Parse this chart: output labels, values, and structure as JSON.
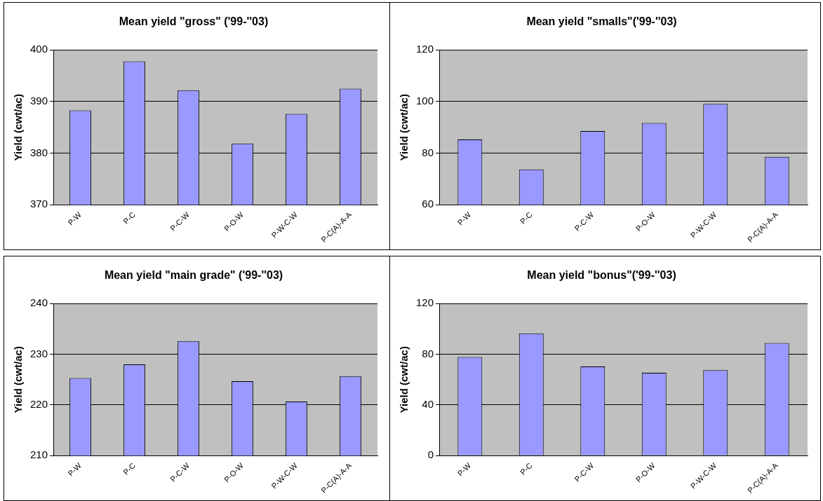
{
  "chart_data": [
    {
      "type": "bar",
      "title": "Mean yield \"gross\" ('99-''03)",
      "ylabel": "Yield (cwt/ac)",
      "categories": [
        "P-W",
        "P-C",
        "P-C-W",
        "P-O-W",
        "P-W-C-W",
        "P-C(A)-A-A"
      ],
      "values": [
        388.3,
        397.8,
        392.2,
        381.9,
        387.6,
        392.5
      ],
      "color": "#9999ff",
      "ylim": [
        370,
        400
      ],
      "yticks": [
        370,
        380,
        390,
        400
      ],
      "grid": "y"
    },
    {
      "type": "bar",
      "title": "Mean yield \"smalls\"('99-''03)",
      "ylabel": "Yield (cwt/ac)",
      "categories": [
        "P-W",
        "P-C",
        "P-C-W",
        "P-O-W",
        "P-W-C-W",
        "P-C(A)-A-A"
      ],
      "values": [
        85.3,
        73.7,
        88.6,
        91.7,
        99.1,
        78.6
      ],
      "color": "#9999ff",
      "ylim": [
        60,
        120
      ],
      "yticks": [
        60,
        80,
        100,
        120
      ],
      "grid": "y"
    },
    {
      "type": "bar",
      "title": "Mean yield \"main grade\" ('99-''03)",
      "ylabel": "Yield (cwt/ac)",
      "categories": [
        "P-W",
        "P-C",
        "P-C-W",
        "P-O-W",
        "P-W-C-W",
        "P-C(A)-A-A"
      ],
      "values": [
        225.3,
        228.0,
        232.6,
        224.7,
        220.7,
        225.7
      ],
      "color": "#9999ff",
      "ylim": [
        210,
        240
      ],
      "yticks": [
        210,
        220,
        230,
        240
      ],
      "grid": "y"
    },
    {
      "type": "bar",
      "title": "Mean yield \"bonus\"('99-''03)",
      "ylabel": "Yield (cwt/ac)",
      "categories": [
        "P-W",
        "P-C",
        "P-C-W",
        "P-O-W",
        "P-W-C-W",
        "P-C(A)-A-A"
      ],
      "values": [
        77.8,
        96.5,
        70.4,
        65.4,
        67.5,
        88.9
      ],
      "color": "#9999ff",
      "ylim": [
        0,
        120
      ],
      "yticks": [
        0,
        40,
        80,
        120
      ],
      "grid": "y"
    }
  ]
}
